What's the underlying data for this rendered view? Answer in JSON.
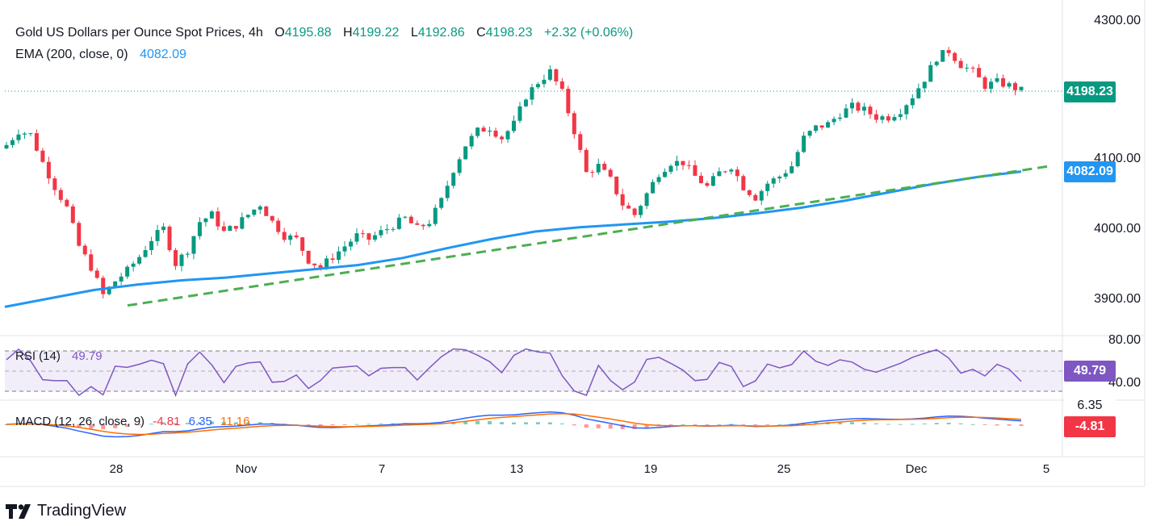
{
  "header": {
    "symbol": "Gold US Dollars per Ounce Spot Prices, 4h",
    "o_label": "O",
    "o_value": "4195.88",
    "h_label": "H",
    "h_value": "4199.22",
    "l_label": "L",
    "l_value": "4192.86",
    "c_label": "C",
    "c_value": "4198.23",
    "change": "+2.32 (+0.06%)",
    "ema_label": "EMA (200, close, 0)",
    "ema_value": "4082.09"
  },
  "rsi": {
    "label": "RSI (14)",
    "value": "49.79",
    "level_top": "80.00",
    "level_bottom": "40.00"
  },
  "macd": {
    "label": "MACD (12, 26, close, 9)",
    "hist": "-4.81",
    "macd": "6.35",
    "signal": "11.16",
    "badge_macd": "6.35",
    "badge_hist": "-4.81"
  },
  "price_axis": [
    "4300.00",
    "4100.00",
    "4000.00",
    "3900.00"
  ],
  "badges": {
    "price": "4198.23",
    "ema": "4082.09",
    "rsi": "49.79"
  },
  "x_axis": [
    "28",
    "Nov",
    "7",
    "13",
    "19",
    "25",
    "Dec",
    "5"
  ],
  "brand": "TradingView",
  "colors": {
    "up": "#089981",
    "down": "#f23645",
    "ema": "#2196f3",
    "trend": "#4caf50",
    "rsi": "#7e57c2",
    "macd": "#2962ff",
    "signal": "#ff6d00",
    "hist_up": "#26a69a",
    "hist_down": "#ff5252"
  },
  "chart_data": {
    "type": "candlestick",
    "title": "Gold US Dollars per Ounce Spot Prices, 4h",
    "ylim": [
      3860,
      4310
    ],
    "x_ticks": [
      "28",
      "Nov",
      "7",
      "13",
      "19",
      "25",
      "Dec",
      "5"
    ],
    "close_path": [
      4120,
      4140,
      4135,
      4095,
      4060,
      4030,
      3975,
      3945,
      3905,
      3925,
      3940,
      3960,
      3985,
      4000,
      3950,
      3970,
      4010,
      4020,
      3995,
      4005,
      4020,
      4035,
      4010,
      3990,
      3985,
      3955,
      3945,
      3960,
      3975,
      3990,
      3985,
      3995,
      4005,
      4015,
      4000,
      4010,
      4040,
      4085,
      4120,
      4140,
      4145,
      4130,
      4150,
      4190,
      4210,
      4225,
      4195,
      4140,
      4080,
      4090,
      4070,
      4035,
      4020,
      4050,
      4080,
      4095,
      4095,
      4075,
      4060,
      4080,
      4090,
      4060,
      4045,
      4065,
      4075,
      4090,
      4130,
      4145,
      4150,
      4165,
      4175,
      4170,
      4160,
      4160,
      4170,
      4190,
      4215,
      4245,
      4255,
      4235,
      4225,
      4205,
      4210,
      4205,
      4198
    ],
    "ema_200": [
      3888,
      3900,
      3912,
      3920,
      3926,
      3930,
      3936,
      3942,
      3948,
      3958,
      3972,
      3985,
      3996,
      4002,
      4006,
      4010,
      4015,
      4022,
      4030,
      4040,
      4052,
      4064,
      4074,
      4082
    ],
    "trend_line": {
      "from": 3890,
      "to": 4090
    },
    "rsi_14": {
      "value": 49.79,
      "levels": [
        80,
        40
      ]
    },
    "macd": {
      "macd": 6.35,
      "signal": 11.16,
      "histogram": -4.81
    }
  }
}
